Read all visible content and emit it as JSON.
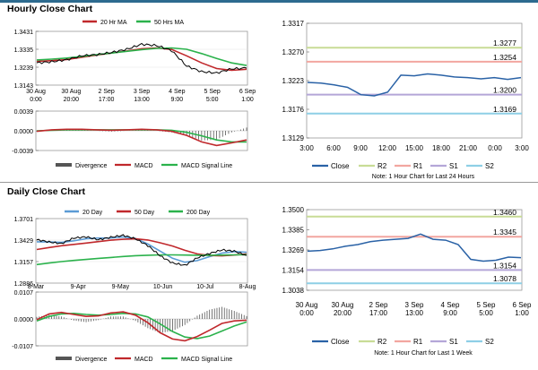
{
  "sections": {
    "hourly_title": "Hourly Close Chart",
    "daily_title": "Daily Close Chart"
  },
  "chart_data": [
    {
      "id": "hourly-price",
      "type": "line",
      "legend": [
        "20 Hr MA",
        "50 Hrs MA"
      ],
      "ylim": [
        1.3143,
        1.3431
      ],
      "yticks": [
        "1.3431",
        "1.3335",
        "1.3239",
        "1.3143"
      ],
      "xticks": [
        [
          "30 Aug",
          "0:00"
        ],
        [
          "30 Aug",
          "20:00"
        ],
        [
          "2 Sep",
          "17:00"
        ],
        [
          "3 Sep",
          "13:00"
        ],
        [
          "4 Sep",
          "9:00"
        ],
        [
          "5 Sep",
          "5:00"
        ],
        [
          "6 Sep",
          "1:00"
        ]
      ],
      "series": [
        {
          "name": "Close",
          "values": [
            1.3262,
            1.3268,
            1.3279,
            1.33,
            1.3306,
            1.3318,
            1.3335,
            1.3362,
            1.3355,
            1.3328,
            1.3245,
            1.3215,
            1.3208,
            1.323,
            1.3234
          ]
        },
        {
          "name": "20 Hr MA",
          "values": [
            1.327,
            1.3274,
            1.328,
            1.3292,
            1.3304,
            1.3315,
            1.3326,
            1.3338,
            1.3342,
            1.3334,
            1.33,
            1.3262,
            1.3232,
            1.3222,
            1.3228
          ]
        },
        {
          "name": "50 Hrs MA",
          "values": [
            1.3278,
            1.3282,
            1.3288,
            1.3296,
            1.3306,
            1.3315,
            1.3324,
            1.3333,
            1.334,
            1.3342,
            1.3335,
            1.3312,
            1.3286,
            1.3262,
            1.3248
          ]
        }
      ],
      "colors": {
        "Close": "#000000",
        "20 Hr MA": "#c0282c",
        "50 Hrs MA": "#2bb24c"
      }
    },
    {
      "id": "hourly-macd",
      "type": "line",
      "legend": [
        "Divergence",
        "MACD",
        "MACD Signal Line"
      ],
      "ylim": [
        -0.0039,
        0.0039
      ],
      "yticks": [
        "0.0039",
        "0.0000",
        "-0.0039"
      ],
      "series": [
        {
          "name": "MACD",
          "values": [
            -0.0001,
            0.0002,
            0.0003,
            0.0003,
            0.0002,
            0.0001,
            0.0002,
            0.0003,
            0.0002,
            -0.0001,
            -0.0009,
            -0.0022,
            -0.0029,
            -0.0024,
            -0.0018
          ]
        },
        {
          "name": "MACD Signal Line",
          "values": [
            0.0,
            0.0001,
            0.0002,
            0.0002,
            0.0002,
            0.0002,
            0.0002,
            0.0002,
            0.0002,
            0.0001,
            -0.0003,
            -0.001,
            -0.0018,
            -0.0022,
            -0.0022
          ]
        }
      ],
      "colors": {
        "Divergence": "#444444",
        "MACD": "#c0282c",
        "MACD Signal Line": "#2bb24c"
      }
    },
    {
      "id": "hourly-pivot",
      "type": "line",
      "ylim": [
        1.3129,
        1.3317
      ],
      "yticks": [
        "1.3317",
        "1.3270",
        "1.3223",
        "1.3176",
        "1.3129"
      ],
      "xticks": [
        "3:00",
        "6:00",
        "9:00",
        "12:00",
        "15:00",
        "18:00",
        "21:00",
        "0:00",
        "3:00"
      ],
      "levels": [
        {
          "name": "R2",
          "value": 1.3277,
          "label": "1.3277",
          "color": "#c8dc96"
        },
        {
          "name": "R1",
          "value": 1.3254,
          "label": "1.3254",
          "color": "#f2a6a0"
        },
        {
          "name": "S1",
          "value": 1.32,
          "label": "1.3200",
          "color": "#b4a6d8"
        },
        {
          "name": "S2",
          "value": 1.3169,
          "label": "1.3169",
          "color": "#8ecfe6"
        }
      ],
      "series": [
        {
          "name": "Close",
          "values": [
            1.322,
            1.3219,
            1.3216,
            1.3212,
            1.32,
            1.3198,
            1.3204,
            1.3232,
            1.3231,
            1.3234,
            1.3232,
            1.3229,
            1.3228,
            1.3226,
            1.3228,
            1.3225,
            1.3228
          ]
        }
      ],
      "legend": [
        "Close",
        "R2",
        "R1",
        "S1",
        "S2"
      ],
      "note": "Note: 1 Hour Chart for Last 24 Hours"
    },
    {
      "id": "daily-price",
      "type": "line",
      "legend": [
        "20 Day",
        "50 Day",
        "200 Day"
      ],
      "ylim": [
        1.2886,
        1.3701
      ],
      "yticks": [
        "1.3701",
        "1.3429",
        "1.3157",
        "1.2886"
      ],
      "xticks": [
        "8-Mar",
        "9-Apr",
        "9-May",
        "10-Jun",
        "10-Jul",
        "8-Aug"
      ],
      "series": [
        {
          "name": "Close",
          "values": [
            1.3435,
            1.3405,
            1.3385,
            1.3455,
            1.347,
            1.3435,
            1.3465,
            1.349,
            1.3445,
            1.336,
            1.323,
            1.314,
            1.311,
            1.3205,
            1.326,
            1.3305,
            1.329,
            1.3235
          ]
        },
        {
          "name": "20 Day",
          "values": [
            1.3408,
            1.3405,
            1.34,
            1.342,
            1.3448,
            1.3455,
            1.3455,
            1.347,
            1.345,
            1.338,
            1.329,
            1.32,
            1.315,
            1.317,
            1.322,
            1.3265,
            1.3285,
            1.3275
          ]
        },
        {
          "name": "50 Day",
          "values": [
            1.331,
            1.3335,
            1.3358,
            1.3375,
            1.3392,
            1.341,
            1.3428,
            1.344,
            1.3445,
            1.343,
            1.3395,
            1.3355,
            1.33,
            1.3255,
            1.3235,
            1.323,
            1.324,
            1.3255
          ]
        },
        {
          "name": "200 Day",
          "values": [
            1.312,
            1.314,
            1.3158,
            1.3172,
            1.3185,
            1.3198,
            1.321,
            1.3222,
            1.3232,
            1.3238,
            1.3242,
            1.3243,
            1.324,
            1.3238,
            1.3238,
            1.324,
            1.3242,
            1.3245
          ]
        }
      ],
      "colors": {
        "Close": "#000000",
        "20 Day": "#5b9bd5",
        "50 Day": "#c0282c",
        "200 Day": "#2bb24c"
      }
    },
    {
      "id": "daily-macd",
      "type": "line",
      "legend": [
        "Divergence",
        "MACD",
        "MACD Signal Line"
      ],
      "ylim": [
        -0.0107,
        0.0107
      ],
      "yticks": [
        "0.0107",
        "0.0000",
        "-0.0107"
      ],
      "series": [
        {
          "name": "MACD",
          "values": [
            -0.0003,
            0.002,
            0.0026,
            0.0018,
            0.001,
            0.0012,
            0.0024,
            0.0028,
            0.0015,
            -0.0015,
            -0.0055,
            -0.008,
            -0.0087,
            -0.007,
            -0.0045,
            -0.0018,
            -0.0008,
            -0.0005
          ]
        },
        {
          "name": "MACD Signal Line",
          "values": [
            -0.0008,
            0.001,
            0.002,
            0.0022,
            0.0018,
            0.0015,
            0.0018,
            0.0022,
            0.002,
            0.0008,
            -0.002,
            -0.005,
            -0.0072,
            -0.0078,
            -0.0068,
            -0.0048,
            -0.0028,
            -0.0012
          ]
        }
      ],
      "colors": {
        "Divergence": "#444444",
        "MACD": "#c0282c",
        "MACD Signal Line": "#2bb24c"
      }
    },
    {
      "id": "daily-pivot",
      "type": "line",
      "ylim": [
        1.3038,
        1.35
      ],
      "yticks": [
        "1.3500",
        "1.3385",
        "1.3269",
        "1.3154",
        "1.3038"
      ],
      "xticks": [
        [
          "30 Aug",
          "0:00"
        ],
        [
          "30 Aug",
          "20:00"
        ],
        [
          "2 Sep",
          "17:00"
        ],
        [
          "3 Sep",
          "13:00"
        ],
        [
          "4 Sep",
          "9:00"
        ],
        [
          "5 Sep",
          "5:00"
        ],
        [
          "6 Sep",
          "1:00"
        ]
      ],
      "levels": [
        {
          "name": "R2",
          "value": 1.346,
          "label": "1.3460",
          "color": "#c8dc96"
        },
        {
          "name": "R1",
          "value": 1.3345,
          "label": "1.3345",
          "color": "#f2a6a0"
        },
        {
          "name": "S1",
          "value": 1.3154,
          "label": "1.3154",
          "color": "#b4a6d8"
        },
        {
          "name": "S2",
          "value": 1.3078,
          "label": "1.3078",
          "color": "#8ecfe6"
        }
      ],
      "series": [
        {
          "name": "Close",
          "values": [
            1.3262,
            1.3266,
            1.3275,
            1.329,
            1.33,
            1.3316,
            1.3325,
            1.333,
            1.3335,
            1.336,
            1.333,
            1.3325,
            1.33,
            1.3215,
            1.3205,
            1.321,
            1.3228,
            1.3225
          ]
        }
      ],
      "legend": [
        "Close",
        "R2",
        "R1",
        "S1",
        "S2"
      ],
      "note": "Note: 1 Hour Chart for Last 1 Week"
    }
  ]
}
